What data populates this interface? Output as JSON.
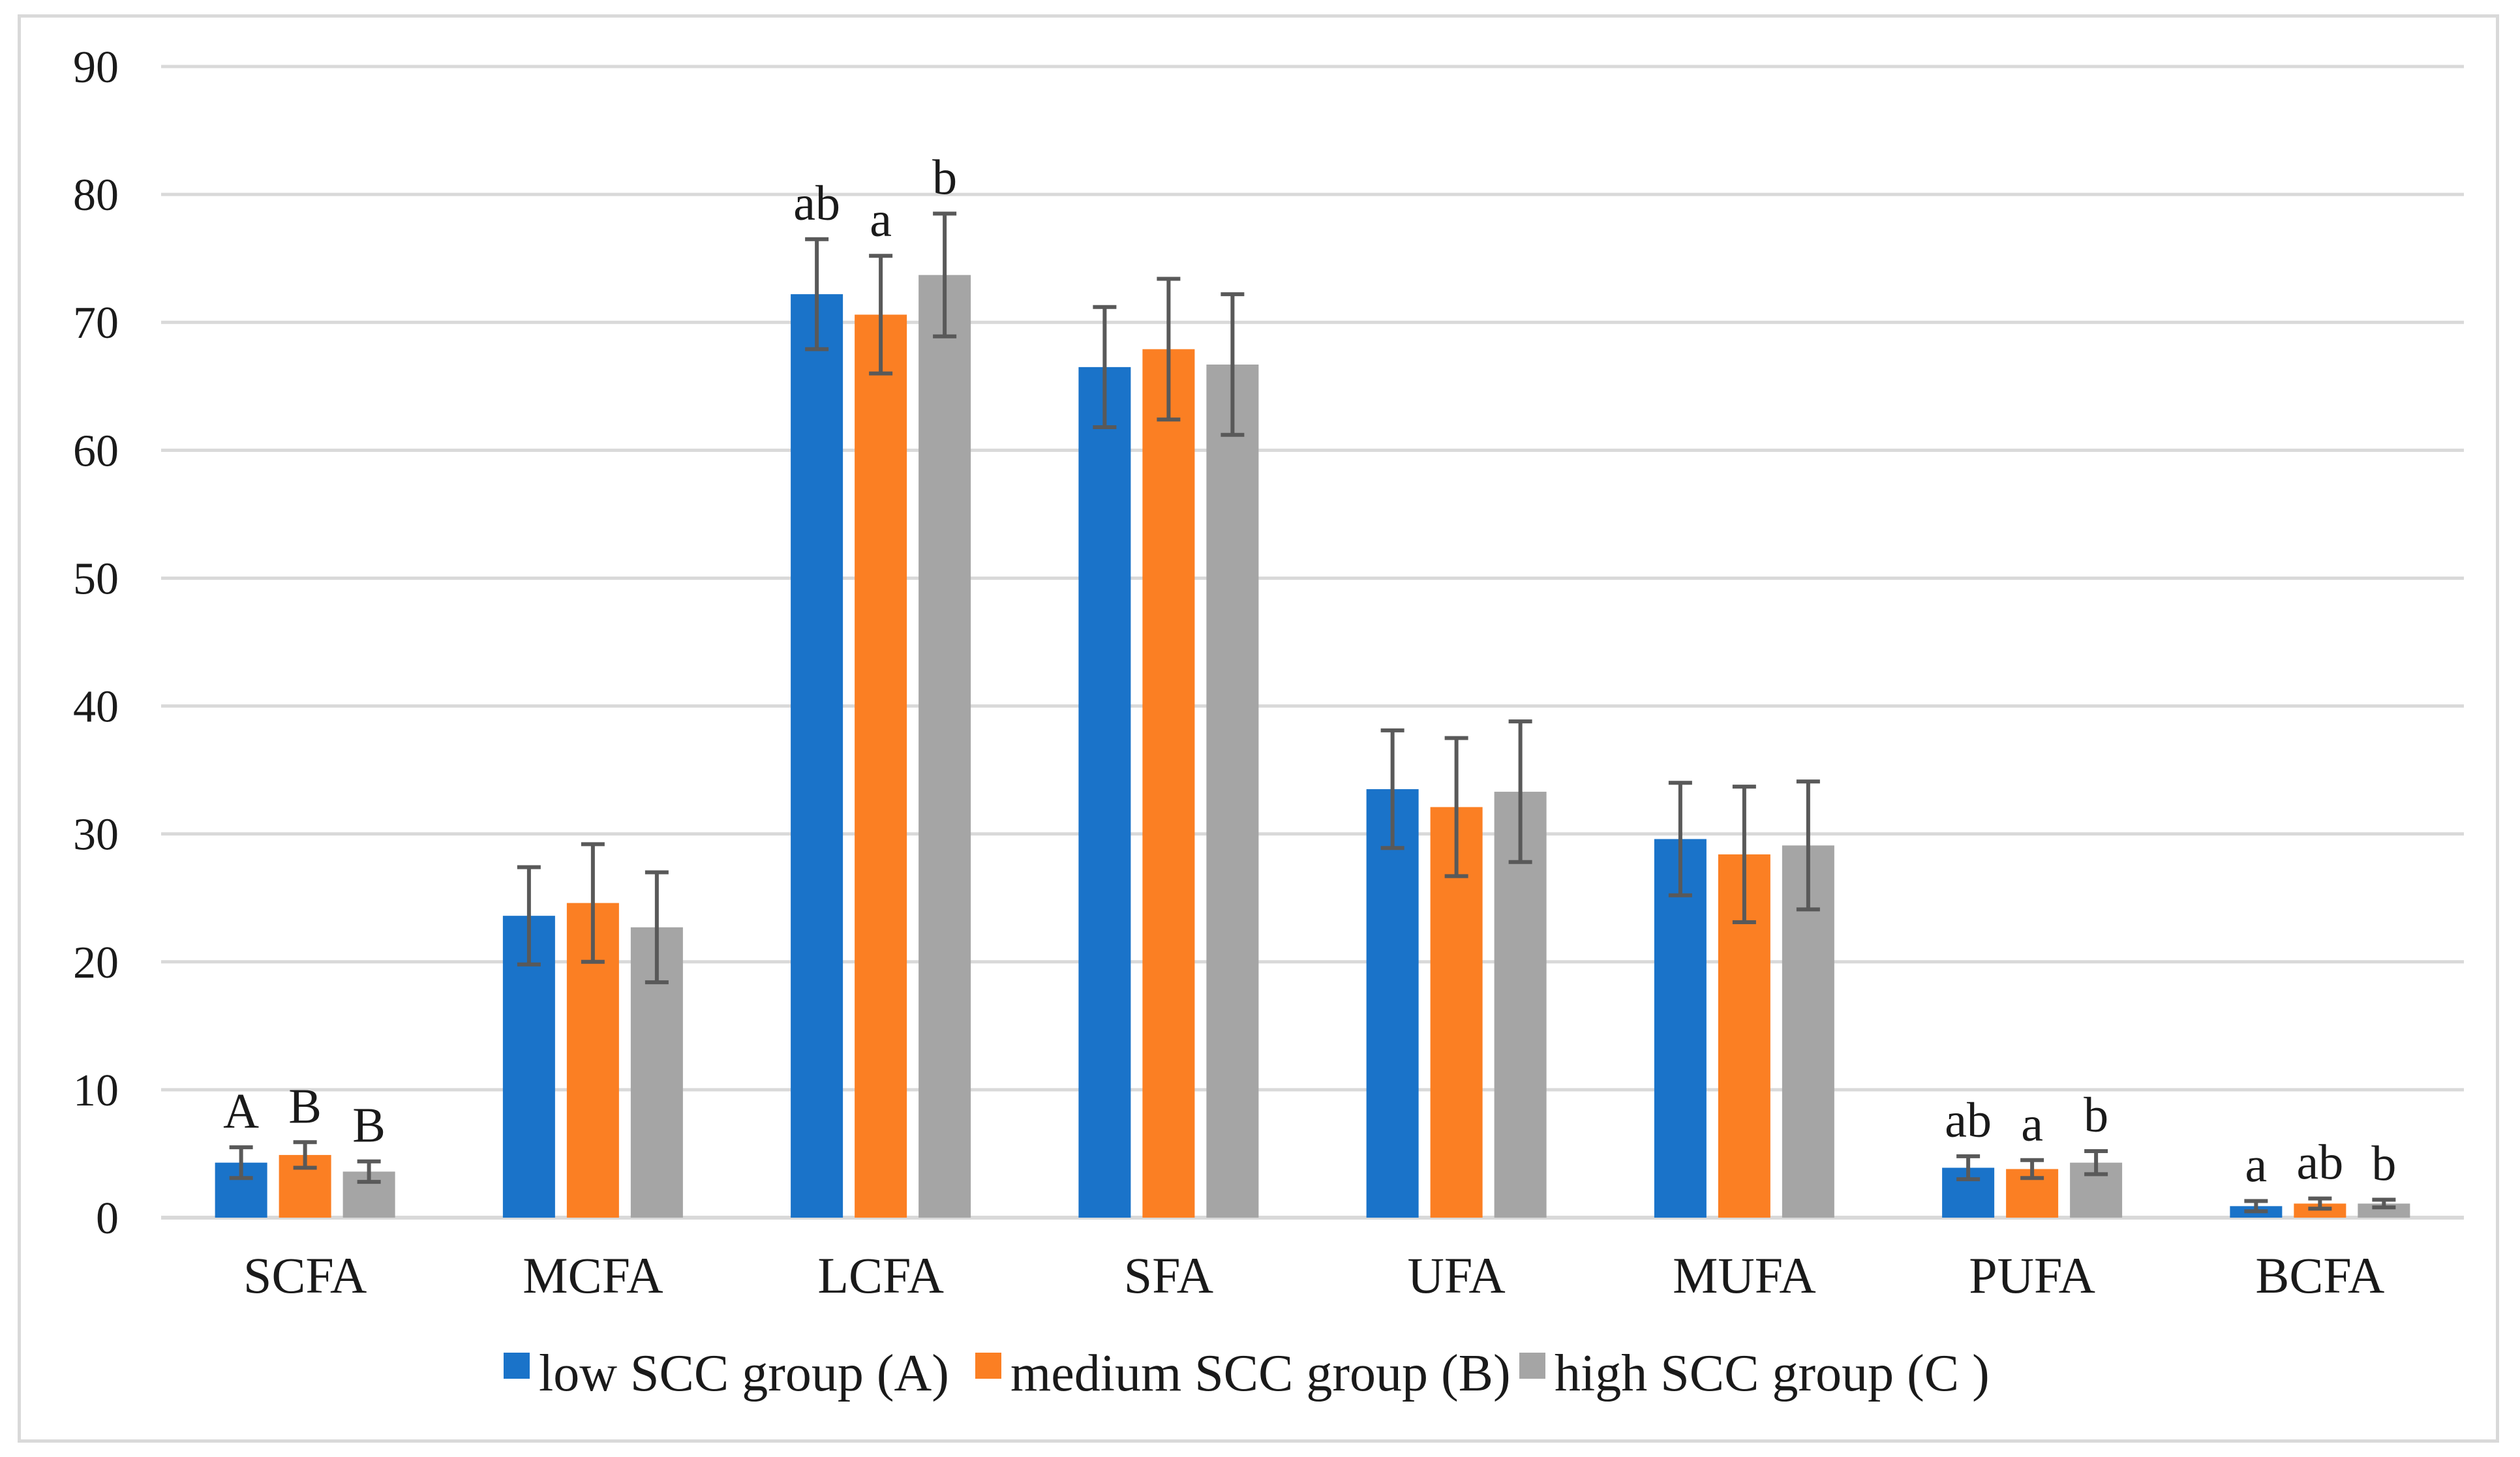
{
  "chart_data": {
    "type": "bar",
    "title": "",
    "xlabel": "",
    "ylabel": "",
    "ylim": [
      0,
      90
    ],
    "yticks": [
      0,
      10,
      20,
      30,
      40,
      50,
      60,
      70,
      80,
      90
    ],
    "grid": true,
    "legend_position": "bottom",
    "categories": [
      "SCFA",
      "MCFA",
      "LCFA",
      "SFA",
      "UFA",
      "MUFA",
      "PUFA",
      "BCFA"
    ],
    "series": [
      {
        "name": "low SCC group (A)",
        "color": "#1a73c9",
        "values": [
          4.3,
          23.6,
          72.2,
          66.5,
          33.5,
          29.6,
          3.9,
          0.9
        ],
        "errors": [
          1.2,
          3.8,
          4.3,
          4.7,
          4.6,
          4.4,
          0.9,
          0.4
        ],
        "labels": [
          "A",
          "",
          "ab",
          "",
          "",
          "",
          "ab",
          "a"
        ]
      },
      {
        "name": "medium SCC group (B)",
        "color": "#fb7f23",
        "values": [
          4.9,
          24.6,
          70.6,
          67.9,
          32.1,
          28.4,
          3.8,
          1.1
        ],
        "errors": [
          1.0,
          4.6,
          4.6,
          5.5,
          5.4,
          5.3,
          0.7,
          0.4
        ],
        "labels": [
          "B",
          "",
          "a",
          "",
          "",
          "",
          "a",
          "ab"
        ]
      },
      {
        "name": "high SCC group (C )",
        "color": "#a5a5a5",
        "values": [
          3.6,
          22.7,
          73.7,
          66.7,
          33.3,
          29.1,
          4.3,
          1.1
        ],
        "errors": [
          0.8,
          4.3,
          4.8,
          5.5,
          5.5,
          5.0,
          0.9,
          0.3
        ],
        "labels": [
          "B",
          "",
          "b",
          "",
          "",
          "",
          "b",
          "b"
        ]
      }
    ]
  }
}
